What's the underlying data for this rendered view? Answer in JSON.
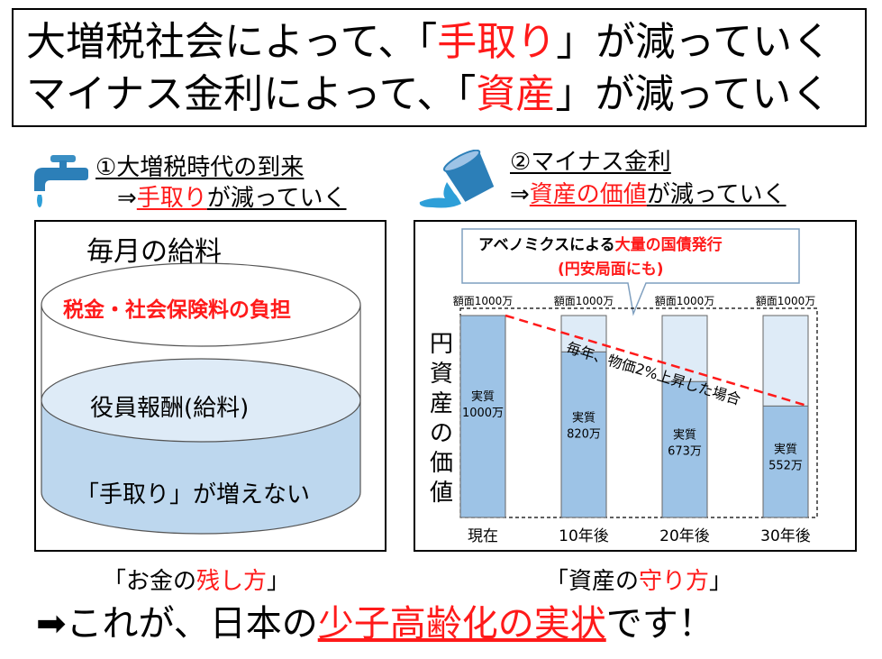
{
  "title": {
    "line1_pre": "大増税社会によって、「",
    "line1_red": "手取り",
    "line1_post": "」が減っていく",
    "line2_pre": "マイナス金利によって、「",
    "line2_red": "資産",
    "line2_post": "」が減っていく"
  },
  "left_section": {
    "heading_line1": "①大増税時代の到来",
    "heading_line2_pre": "⇒",
    "heading_line2_red": "手取り",
    "heading_line2_post": "が減っていく",
    "salary_title": "毎月の給料",
    "tax_label": "税金・社会保険料の負担",
    "compensation_label": "役員報酬(給料)",
    "takehome_label": "「手取り」が増えない",
    "caption_pre": "「お金の",
    "caption_red": "残し方",
    "caption_post": "」"
  },
  "right_section": {
    "heading_line1": "②マイナス金利",
    "heading_line2_pre": "⇒",
    "heading_line2_red": "資産の価値",
    "heading_line2_post": "が減っていく",
    "callout_pre": "アベノミクスによる",
    "callout_red": "大量の国債発行",
    "callout_line2": "(円安局面にも)",
    "yaxis_label": "円資産の価値",
    "trend_label": "毎年、物価2%上昇した場合",
    "caption_pre": "「資産の",
    "caption_red": "守り方",
    "caption_post": "」"
  },
  "bottom": {
    "arrow": "➡",
    "pre": "これが、日本の",
    "red": "少子高齢化の実状",
    "post": "です！"
  },
  "colors": {
    "accent_red": "#ff1a1a",
    "bar_fill": "#9dc3e6",
    "bar_light": "#deebf7",
    "cylinder_fill": "#bdd7ee",
    "water": "#2e9fd8"
  },
  "chart_data": {
    "type": "bar",
    "categories": [
      "現在",
      "10年後",
      "20年後",
      "30年後"
    ],
    "face_value_labels": [
      "額面1000万",
      "額面1000万",
      "額面1000万",
      "額面1000万"
    ],
    "face_values": [
      1000,
      1000,
      1000,
      1000
    ],
    "real_values": [
      1000,
      820,
      673,
      552
    ],
    "real_value_labels": [
      "実質\n1000万",
      "実質\n820万",
      "実質\n673万",
      "実質\n552万"
    ],
    "ylabel": "円資産の価値",
    "ylim": [
      0,
      1000
    ],
    "grid": false,
    "trend_line": "dashed red"
  }
}
